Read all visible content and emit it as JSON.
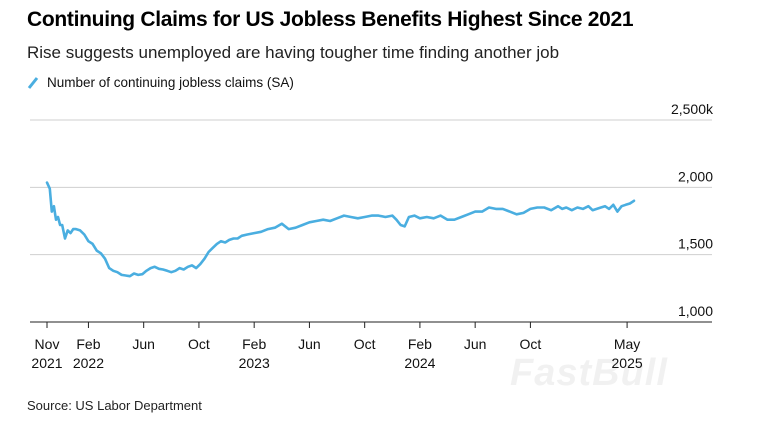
{
  "chart_data": {
    "type": "line",
    "title": "Continuing Claims for US Jobless Benefits Highest Since 2021",
    "subtitle": "Rise suggests unemployed are having tougher time finding another job",
    "source": "Source: US Labor Department",
    "watermark": "FastBull",
    "ylim": [
      1000,
      2500
    ],
    "yticks": [
      {
        "value": 2500,
        "label": "2,500k"
      },
      {
        "value": 2000,
        "label": "2,000"
      },
      {
        "value": 1500,
        "label": "1,500"
      },
      {
        "value": 1000,
        "label": "1,000"
      }
    ],
    "xlim": [
      0,
      42.5
    ],
    "xticks": [
      {
        "x": 0,
        "line1": "Nov",
        "line2": "2021"
      },
      {
        "x": 3,
        "line1": "Feb",
        "line2": "2022"
      },
      {
        "x": 7,
        "line1": "Jun",
        "line2": ""
      },
      {
        "x": 11,
        "line1": "Oct",
        "line2": ""
      },
      {
        "x": 15,
        "line1": "Feb",
        "line2": "2023"
      },
      {
        "x": 19,
        "line1": "Jun",
        "line2": ""
      },
      {
        "x": 23,
        "line1": "Oct",
        "line2": ""
      },
      {
        "x": 27,
        "line1": "Feb",
        "line2": "2024"
      },
      {
        "x": 31,
        "line1": "Jun",
        "line2": ""
      },
      {
        "x": 35,
        "line1": "Oct",
        "line2": ""
      },
      {
        "x": 42,
        "line1": "May",
        "line2": "2025"
      }
    ],
    "series": [
      {
        "name": "Number of continuing jobless claims (SA)",
        "color": "#4aaee0",
        "x": [
          0,
          0.2,
          0.35,
          0.5,
          0.65,
          0.8,
          0.95,
          1.1,
          1.3,
          1.5,
          1.7,
          1.9,
          2.1,
          2.4,
          2.7,
          3.0,
          3.3,
          3.6,
          3.9,
          4.2,
          4.5,
          4.8,
          5.1,
          5.4,
          5.7,
          6.0,
          6.3,
          6.6,
          6.9,
          7.2,
          7.5,
          7.8,
          8.1,
          8.4,
          8.7,
          9.0,
          9.3,
          9.6,
          9.9,
          10.2,
          10.5,
          10.8,
          11.1,
          11.4,
          11.7,
          12.0,
          12.3,
          12.6,
          12.9,
          13.2,
          13.5,
          13.8,
          14.1,
          14.5,
          15.0,
          15.5,
          16.0,
          16.5,
          17.0,
          17.5,
          18.0,
          18.5,
          19.0,
          19.5,
          20.0,
          20.5,
          21.0,
          21.5,
          22.0,
          22.5,
          23.0,
          23.5,
          24.0,
          24.5,
          25.0,
          25.3,
          25.6,
          25.9,
          26.2,
          26.6,
          27.0,
          27.5,
          28.0,
          28.5,
          29.0,
          29.5,
          30.0,
          30.5,
          31.0,
          31.5,
          32.0,
          32.5,
          33.0,
          33.5,
          34.0,
          34.5,
          35.0,
          35.5,
          36.0,
          36.5,
          37.0,
          37.3,
          37.6,
          38.0,
          38.4,
          38.8,
          39.2,
          39.5,
          39.8,
          40.1,
          40.4,
          40.7,
          41.0,
          41.3,
          41.6,
          41.9,
          42.2,
          42.5
        ],
        "values": [
          2035,
          1990,
          1820,
          1860,
          1760,
          1780,
          1720,
          1720,
          1620,
          1680,
          1660,
          1690,
          1690,
          1680,
          1650,
          1600,
          1580,
          1530,
          1510,
          1470,
          1400,
          1380,
          1370,
          1350,
          1345,
          1340,
          1360,
          1350,
          1355,
          1380,
          1400,
          1410,
          1395,
          1390,
          1380,
          1370,
          1380,
          1400,
          1390,
          1410,
          1420,
          1400,
          1430,
          1470,
          1520,
          1550,
          1580,
          1600,
          1590,
          1610,
          1620,
          1620,
          1640,
          1650,
          1660,
          1670,
          1690,
          1700,
          1730,
          1690,
          1700,
          1720,
          1740,
          1750,
          1760,
          1750,
          1770,
          1790,
          1780,
          1770,
          1780,
          1790,
          1790,
          1780,
          1790,
          1760,
          1720,
          1710,
          1780,
          1790,
          1770,
          1780,
          1770,
          1790,
          1760,
          1760,
          1780,
          1800,
          1820,
          1820,
          1850,
          1840,
          1840,
          1820,
          1800,
          1810,
          1840,
          1850,
          1850,
          1830,
          1860,
          1840,
          1850,
          1830,
          1850,
          1840,
          1860,
          1830,
          1840,
          1850,
          1860,
          1840,
          1870,
          1820,
          1860,
          1870,
          1880,
          1900
        ]
      }
    ]
  }
}
